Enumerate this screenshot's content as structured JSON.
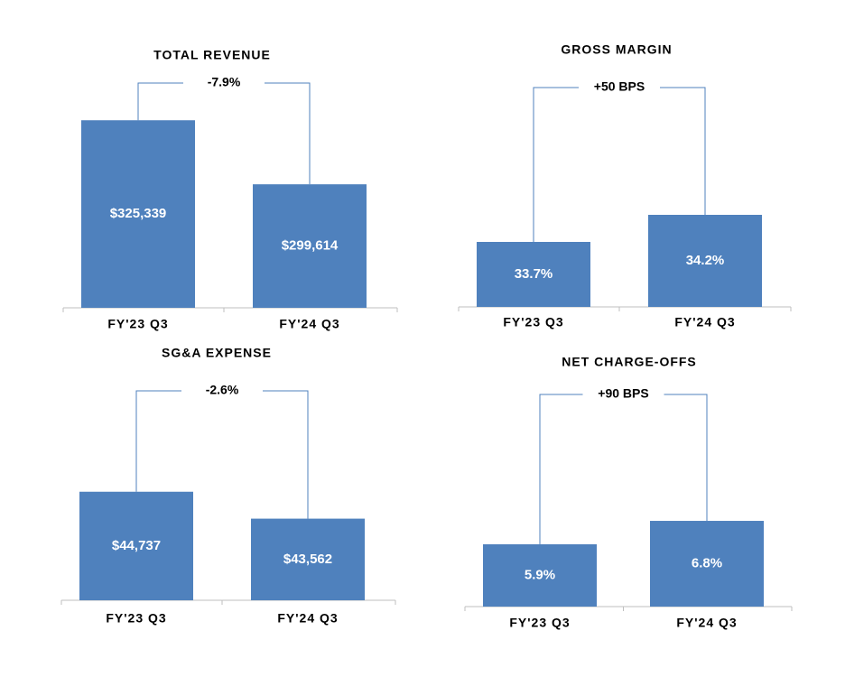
{
  "chart_data": [
    {
      "type": "bar",
      "title": "TOTAL REVENUE",
      "annotation": "-7.9%",
      "categories": [
        "FY'23 Q3",
        "FY'24 Q3"
      ],
      "values": [
        325339,
        299614
      ],
      "value_labels": [
        "$325,339",
        "$299,614"
      ],
      "color": "#4f81bd",
      "ylim": [
        250000,
        345000
      ]
    },
    {
      "type": "bar",
      "title": "GROSS MARGIN",
      "annotation": "+50 BPS",
      "categories": [
        "FY'23 Q3",
        "FY'24 Q3"
      ],
      "values": [
        33.7,
        34.2
      ],
      "value_labels": [
        "33.7%",
        "34.2%"
      ],
      "color": "#4f81bd",
      "ylim": [
        32.5,
        37
      ]
    },
    {
      "type": "bar",
      "title": "SG&A EXPENSE",
      "annotation": "-2.6%",
      "categories": [
        "FY'23 Q3",
        "FY'24 Q3"
      ],
      "values": [
        44737,
        43562
      ],
      "value_labels": [
        "$44,737",
        "$43,562"
      ],
      "color": "#4f81bd",
      "ylim": [
        40000,
        46500
      ]
    },
    {
      "type": "bar",
      "title": "NET CHARGE-OFFS",
      "annotation": "+90 BPS",
      "categories": [
        "FY'23 Q3",
        "FY'24 Q3"
      ],
      "values": [
        5.9,
        6.8
      ],
      "value_labels": [
        "5.9%",
        "6.8%"
      ],
      "color": "#4f81bd",
      "ylim": [
        3.5,
        12.5
      ]
    }
  ]
}
